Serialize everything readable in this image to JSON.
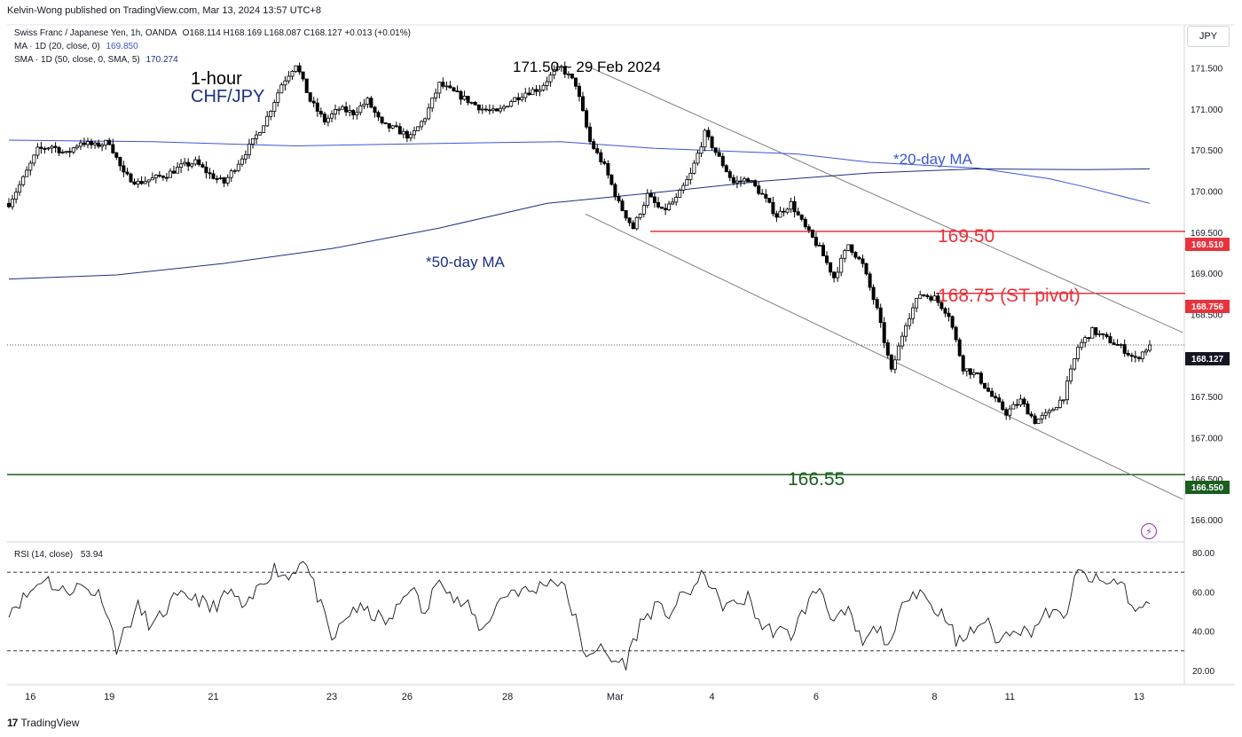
{
  "header": {
    "published": "Kelvin-Wong published on TradingView.com, Mar 13, 2024 13:57 UTC+8"
  },
  "legend": {
    "symbol_line": "Swiss Franc / Japanese Yen, 1h, OANDA",
    "ohlc": "O168.114  H168.169  L168.087  C168.127  +0.013 (+0.01%)",
    "ma20_label": "MA · 1D (20, close, 0)",
    "ma20_value": "169.850",
    "sma50_label": "SMA · 1D (50, close, 0, SMA, 5)",
    "sma50_value": "170.274"
  },
  "currency": "JPY",
  "rsi": {
    "label": "RSI (14, close)",
    "value": "53.94",
    "levels": [
      "80.00",
      "60.00",
      "40.00",
      "20.00"
    ],
    "overbought": 70,
    "oversold": 30
  },
  "footer": {
    "logo": "17",
    "brand": "TradingView"
  },
  "icons": {
    "alert": "lightning-bolt-icon"
  },
  "colors": {
    "candle": "#000000",
    "ma20": "#3a55d8",
    "sma50": "#1b2f86",
    "resistance": "#e8333d",
    "support": "#1b5e20",
    "channel": "#808080"
  },
  "chart_data": {
    "type": "candlestick",
    "symbol": "CHF/JPY",
    "timeframe": "1-hour",
    "title": "1-hour",
    "subtitle": "CHF/JPY",
    "ylim": [
      165.85,
      171.85
    ],
    "y_ticks": [
      "171.500",
      "171.000",
      "170.500",
      "170.000",
      "169.500",
      "169.000",
      "168.500",
      "168.000",
      "167.500",
      "167.000",
      "166.500",
      "166.000"
    ],
    "x_ticks": [
      "16",
      "19",
      "21",
      "23",
      "26",
      "28",
      "Mar",
      "4",
      "6",
      "8",
      "11",
      "13"
    ],
    "annotations": {
      "peak": "171.50 ~ 29 Feb 2024",
      "ma20": "*20-day MA",
      "ma50": "*50-day MA",
      "level_1": "169.50",
      "level_2": "168.75 (ST pivot)",
      "level_3": "166.55"
    },
    "price_labels": {
      "resistance_1": "169.510",
      "resistance_2": "168.756",
      "last": "168.127",
      "support": "166.550"
    },
    "levels": [
      {
        "value": 169.51,
        "role": "resistance"
      },
      {
        "value": 168.756,
        "role": "resistance"
      },
      {
        "value": 166.55,
        "role": "support"
      }
    ],
    "last_price": 168.127,
    "price_path": [
      [
        0,
        169.85
      ],
      [
        4,
        170.15
      ],
      [
        8,
        170.5
      ],
      [
        12,
        170.55
      ],
      [
        16,
        170.45
      ],
      [
        20,
        170.6
      ],
      [
        24,
        170.55
      ],
      [
        28,
        170.6
      ],
      [
        32,
        170.2
      ],
      [
        36,
        170.1
      ],
      [
        40,
        170.15
      ],
      [
        44,
        170.2
      ],
      [
        48,
        170.3
      ],
      [
        52,
        170.35
      ],
      [
        56,
        170.2
      ],
      [
        60,
        170.1
      ],
      [
        64,
        170.35
      ],
      [
        68,
        170.6
      ],
      [
        72,
        170.9
      ],
      [
        76,
        171.3
      ],
      [
        80,
        171.55
      ],
      [
        84,
        171.1
      ],
      [
        88,
        170.85
      ],
      [
        92,
        171.0
      ],
      [
        96,
        170.95
      ],
      [
        100,
        171.1
      ],
      [
        104,
        170.8
      ],
      [
        108,
        170.75
      ],
      [
        112,
        170.65
      ],
      [
        116,
        170.9
      ],
      [
        120,
        171.3
      ],
      [
        124,
        171.2
      ],
      [
        128,
        171.1
      ],
      [
        132,
        171.0
      ],
      [
        136,
        170.95
      ],
      [
        140,
        171.1
      ],
      [
        144,
        171.2
      ],
      [
        148,
        171.25
      ],
      [
        152,
        171.45
      ],
      [
        154,
        171.5
      ],
      [
        158,
        171.3
      ],
      [
        162,
        170.6
      ],
      [
        166,
        170.3
      ],
      [
        170,
        169.85
      ],
      [
        174,
        169.55
      ],
      [
        178,
        169.95
      ],
      [
        182,
        169.75
      ],
      [
        186,
        169.9
      ],
      [
        190,
        170.2
      ],
      [
        194,
        170.7
      ],
      [
        198,
        170.4
      ],
      [
        202,
        170.1
      ],
      [
        206,
        170.15
      ],
      [
        210,
        169.95
      ],
      [
        214,
        169.7
      ],
      [
        218,
        169.85
      ],
      [
        222,
        169.55
      ],
      [
        226,
        169.3
      ],
      [
        230,
        168.95
      ],
      [
        234,
        169.35
      ],
      [
        238,
        169.1
      ],
      [
        242,
        168.55
      ],
      [
        246,
        167.8
      ],
      [
        250,
        168.4
      ],
      [
        254,
        168.75
      ],
      [
        258,
        168.7
      ],
      [
        262,
        168.5
      ],
      [
        266,
        167.85
      ],
      [
        270,
        167.75
      ],
      [
        274,
        167.5
      ],
      [
        278,
        167.3
      ],
      [
        282,
        167.45
      ],
      [
        286,
        167.2
      ],
      [
        290,
        167.3
      ],
      [
        294,
        167.5
      ],
      [
        298,
        168.1
      ],
      [
        302,
        168.3
      ],
      [
        306,
        168.2
      ],
      [
        310,
        168.1
      ],
      [
        314,
        167.95
      ],
      [
        318,
        168.127
      ]
    ],
    "ma20_path": [
      [
        0,
        170.62
      ],
      [
        40,
        170.6
      ],
      [
        80,
        170.55
      ],
      [
        120,
        170.58
      ],
      [
        154,
        170.6
      ],
      [
        180,
        170.52
      ],
      [
        220,
        170.45
      ],
      [
        240,
        170.35
      ],
      [
        270,
        170.28
      ],
      [
        290,
        170.15
      ],
      [
        300,
        170.05
      ],
      [
        318,
        169.85
      ]
    ],
    "sma50_path": [
      [
        0,
        168.93
      ],
      [
        30,
        168.98
      ],
      [
        60,
        169.12
      ],
      [
        90,
        169.3
      ],
      [
        120,
        169.55
      ],
      [
        150,
        169.85
      ],
      [
        180,
        169.98
      ],
      [
        210,
        170.12
      ],
      [
        240,
        170.22
      ],
      [
        270,
        170.27
      ],
      [
        300,
        170.26
      ],
      [
        318,
        170.27
      ]
    ],
    "rsi_path": [
      [
        0,
        51
      ],
      [
        5,
        58
      ],
      [
        10,
        68
      ],
      [
        14,
        60
      ],
      [
        20,
        63
      ],
      [
        26,
        58
      ],
      [
        30,
        32
      ],
      [
        36,
        52
      ],
      [
        40,
        42
      ],
      [
        46,
        56
      ],
      [
        52,
        58
      ],
      [
        56,
        51
      ],
      [
        62,
        60
      ],
      [
        66,
        50
      ],
      [
        70,
        64
      ],
      [
        74,
        72
      ],
      [
        78,
        67
      ],
      [
        82,
        78
      ],
      [
        86,
        58
      ],
      [
        90,
        35
      ],
      [
        96,
        52
      ],
      [
        102,
        48
      ],
      [
        106,
        44
      ],
      [
        112,
        64
      ],
      [
        116,
        47
      ],
      [
        120,
        70
      ],
      [
        124,
        56
      ],
      [
        128,
        52
      ],
      [
        132,
        40
      ],
      [
        136,
        54
      ],
      [
        140,
        61
      ],
      [
        146,
        60
      ],
      [
        150,
        66
      ],
      [
        154,
        65
      ],
      [
        158,
        46
      ],
      [
        160,
        28
      ],
      [
        164,
        32
      ],
      [
        168,
        25
      ],
      [
        172,
        24
      ],
      [
        176,
        44
      ],
      [
        180,
        52
      ],
      [
        184,
        49
      ],
      [
        188,
        58
      ],
      [
        192,
        64
      ],
      [
        194,
        70
      ],
      [
        198,
        54
      ],
      [
        202,
        53
      ],
      [
        206,
        57
      ],
      [
        210,
        42
      ],
      [
        214,
        40
      ],
      [
        218,
        38
      ],
      [
        222,
        52
      ],
      [
        226,
        63
      ],
      [
        230,
        45
      ],
      [
        234,
        49
      ],
      [
        238,
        33
      ],
      [
        242,
        42
      ],
      [
        246,
        32
      ],
      [
        250,
        59
      ],
      [
        254,
        61
      ],
      [
        258,
        51
      ],
      [
        262,
        47
      ],
      [
        264,
        33
      ],
      [
        268,
        39
      ],
      [
        272,
        46
      ],
      [
        276,
        34
      ],
      [
        280,
        43
      ],
      [
        284,
        39
      ],
      [
        290,
        50
      ],
      [
        294,
        46
      ],
      [
        298,
        70
      ],
      [
        302,
        66
      ],
      [
        306,
        64
      ],
      [
        310,
        66
      ],
      [
        314,
        49
      ],
      [
        318,
        54
      ]
    ]
  }
}
